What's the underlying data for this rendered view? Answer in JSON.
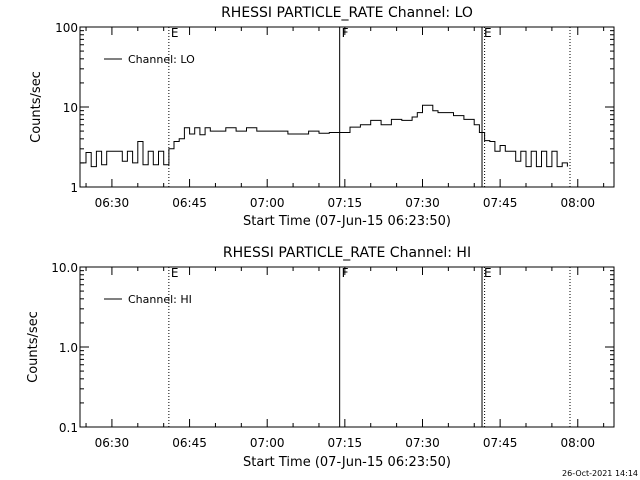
{
  "footer": {
    "timestamp": "26-Oct-2021 14:14"
  },
  "chart_data": [
    {
      "type": "line",
      "title": "RHESSI PARTICLE_RATE Channel: LO",
      "xlabel": "Start Time (07-Jun-15 06:23:50)",
      "ylabel": "Counts/sec",
      "yscale": "log",
      "xlim": [
        "06:23:50",
        "08:07:00"
      ],
      "ylim": [
        1,
        100
      ],
      "xticks": [
        "06:30",
        "06:45",
        "07:00",
        "07:15",
        "07:30",
        "07:45",
        "08:00"
      ],
      "yticks": [
        {
          "value": 1,
          "label": "1"
        },
        {
          "value": 10,
          "label": "10"
        },
        {
          "value": 100,
          "label": "100"
        }
      ],
      "legend": {
        "entries": [
          "Channel: LO"
        ],
        "placement": "top-left"
      },
      "markers": [
        {
          "time": "06:41:00",
          "label": "E",
          "style": "dotted"
        },
        {
          "time": "07:14:00",
          "label": "F",
          "style": "solid"
        },
        {
          "time": "07:41:30",
          "label": "E",
          "style": "solid"
        },
        {
          "time": "07:42:00",
          "label": "",
          "style": "dotted"
        },
        {
          "time": "07:58:30",
          "label": "",
          "style": "dotted"
        }
      ],
      "series": [
        {
          "name": "Channel: LO",
          "x": [
            "06:24:00",
            "06:25:00",
            "06:26:00",
            "06:27:00",
            "06:28:00",
            "06:29:00",
            "06:30:00",
            "06:31:00",
            "06:32:00",
            "06:33:00",
            "06:34:00",
            "06:35:00",
            "06:36:00",
            "06:37:00",
            "06:38:00",
            "06:39:00",
            "06:40:00",
            "06:41:00",
            "06:42:00",
            "06:43:00",
            "06:44:00",
            "06:45:00",
            "06:46:00",
            "06:47:00",
            "06:48:00",
            "06:49:00",
            "06:50:00",
            "06:52:00",
            "06:54:00",
            "06:56:00",
            "06:58:00",
            "07:00:00",
            "07:02:00",
            "07:04:00",
            "07:06:00",
            "07:08:00",
            "07:10:00",
            "07:12:00",
            "07:14:00",
            "07:16:00",
            "07:18:00",
            "07:20:00",
            "07:22:00",
            "07:24:00",
            "07:26:00",
            "07:28:00",
            "07:29:00",
            "07:30:00",
            "07:31:00",
            "07:32:00",
            "07:33:00",
            "07:34:00",
            "07:36:00",
            "07:38:00",
            "07:40:00",
            "07:41:00",
            "07:42:00",
            "07:43:00",
            "07:44:00",
            "07:45:00",
            "07:46:00",
            "07:47:00",
            "07:48:00",
            "07:49:00",
            "07:50:00",
            "07:51:00",
            "07:52:00",
            "07:53:00",
            "07:54:00",
            "07:55:00",
            "07:56:00",
            "07:57:00",
            "07:58:00"
          ],
          "values": [
            2.0,
            2.7,
            1.8,
            2.8,
            1.9,
            2.8,
            2.8,
            2.8,
            2.1,
            2.8,
            2.0,
            3.7,
            1.9,
            2.8,
            1.9,
            2.8,
            1.9,
            3.0,
            3.7,
            4.0,
            5.5,
            4.6,
            5.5,
            4.5,
            5.5,
            5.0,
            5.0,
            5.5,
            5.0,
            5.5,
            5.0,
            5.0,
            5.0,
            4.6,
            4.6,
            5.0,
            4.7,
            4.8,
            4.8,
            5.6,
            6.0,
            6.8,
            6.0,
            7.0,
            6.8,
            7.5,
            8.5,
            10.5,
            10.5,
            9.0,
            8.5,
            8.5,
            7.8,
            7.0,
            6.0,
            4.8,
            3.8,
            3.7,
            2.8,
            3.3,
            2.8,
            2.8,
            2.1,
            2.8,
            1.8,
            2.8,
            1.8,
            2.8,
            1.8,
            2.8,
            1.8,
            2.0,
            1.8
          ]
        }
      ]
    },
    {
      "type": "line",
      "title": "RHESSI PARTICLE_RATE Channel: HI",
      "xlabel": "Start Time (07-Jun-15 06:23:50)",
      "ylabel": "Counts/sec",
      "yscale": "log",
      "xlim": [
        "06:23:50",
        "08:07:00"
      ],
      "ylim": [
        0.1,
        10
      ],
      "xticks": [
        "06:30",
        "06:45",
        "07:00",
        "07:15",
        "07:30",
        "07:45",
        "08:00"
      ],
      "yticks": [
        {
          "value": 0.1,
          "label": "0.1"
        },
        {
          "value": 1,
          "label": "1.0"
        },
        {
          "value": 10,
          "label": "10.0"
        }
      ],
      "legend": {
        "entries": [
          "Channel: HI"
        ],
        "placement": "top-left"
      },
      "markers": [
        {
          "time": "06:41:00",
          "label": "E",
          "style": "dotted"
        },
        {
          "time": "07:14:00",
          "label": "F",
          "style": "solid"
        },
        {
          "time": "07:41:30",
          "label": "E",
          "style": "solid"
        },
        {
          "time": "07:42:00",
          "label": "",
          "style": "dotted"
        },
        {
          "time": "07:58:30",
          "label": "",
          "style": "dotted"
        }
      ],
      "series": [
        {
          "name": "Channel: HI",
          "x": [],
          "values": []
        }
      ]
    }
  ]
}
